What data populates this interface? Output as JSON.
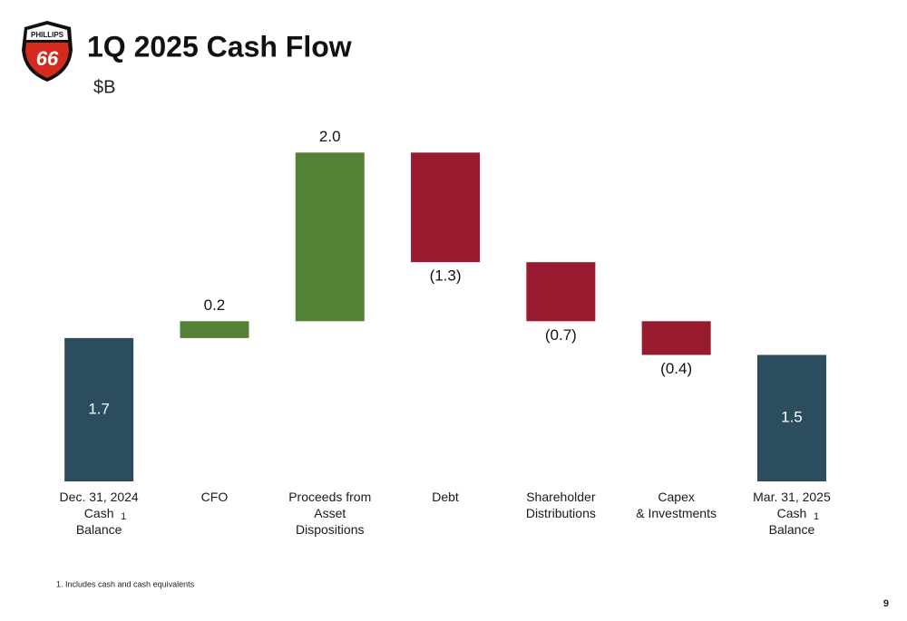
{
  "logo": {
    "top": "PHILLIPS",
    "number": "66"
  },
  "page_number": "9",
  "footnote": "1. Includes cash and cash equivalents",
  "chart_data": {
    "type": "waterfall",
    "title": "1Q 2025 Cash Flow",
    "subtitle": "$B",
    "categories": [
      "Dec. 31, 2024\nCash\nBalance",
      "CFO",
      "Proceeds from\nAsset\nDispositions",
      "Debt",
      "Shareholder\nDistributions",
      "Capex\n& Investments",
      "Mar. 31, 2025\nCash\nBalance"
    ],
    "category_marks": [
      "1",
      null,
      null,
      null,
      null,
      null,
      "1"
    ],
    "values": [
      1.7,
      0.2,
      2.0,
      -1.3,
      -0.7,
      -0.4,
      1.5
    ],
    "value_labels": [
      "1.7",
      "0.2",
      "2.0",
      "(1.3)",
      "(0.7)",
      "(0.4)",
      "1.5"
    ],
    "totals": [
      true,
      false,
      false,
      false,
      false,
      false,
      true
    ],
    "colors": {
      "total": "#2c4d5f",
      "increase": "#538135",
      "decrease": "#981b30"
    },
    "ylim": [
      0,
      4
    ]
  }
}
